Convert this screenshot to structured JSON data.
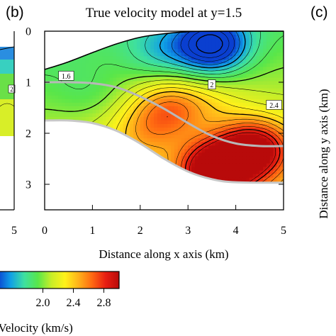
{
  "panel_b_label": "(b)",
  "panel_c_label": "(c)",
  "chart_data": [
    {
      "type": "heatmap",
      "title": "True velocity model at y=1.5",
      "xlabel": "Distance along x axis (km)",
      "ylabel": "",
      "xlim": [
        0,
        5
      ],
      "ylim": [
        0,
        3.5
      ],
      "y_axis_inverted": true,
      "x_ticks": [
        "0",
        "1",
        "2",
        "3",
        "4",
        "5"
      ],
      "y_ticks": [
        "0",
        "1",
        "2",
        "3"
      ],
      "contour_labels": [
        {
          "text": "1.6",
          "x": 0.45,
          "y": 0.88
        },
        {
          "text": "2",
          "x": 3.5,
          "y": 1.05
        },
        {
          "text": "2.4",
          "x": 4.8,
          "y": 1.45
        }
      ],
      "top_boundary": [
        [
          0,
          0.75
        ],
        [
          0.5,
          0.6
        ],
        [
          1,
          0.42
        ],
        [
          1.5,
          0.25
        ],
        [
          2,
          0.12
        ],
        [
          2.5,
          0.05
        ],
        [
          3,
          0.01
        ],
        [
          3.5,
          0.0
        ],
        [
          5,
          0.0
        ]
      ],
      "bottom_boundary": [
        [
          0,
          1.75
        ],
        [
          0.5,
          1.75
        ],
        [
          1,
          1.8
        ],
        [
          1.5,
          1.95
        ],
        [
          2,
          2.2
        ],
        [
          2.5,
          2.5
        ],
        [
          3,
          2.75
        ],
        [
          3.5,
          2.9
        ],
        [
          4,
          2.96
        ],
        [
          5,
          2.97
        ]
      ],
      "gray_line": [
        [
          0,
          1.0
        ],
        [
          0.5,
          1.0
        ],
        [
          1,
          1.02
        ],
        [
          1.5,
          1.1
        ],
        [
          2,
          1.28
        ],
        [
          2.5,
          1.52
        ],
        [
          3,
          1.8
        ],
        [
          3.5,
          2.05
        ],
        [
          4,
          2.2
        ],
        [
          4.5,
          2.25
        ],
        [
          5,
          2.25
        ]
      ],
      "velocity_field": {
        "background_kms": 1.9,
        "anomalies": [
          {
            "x": 3.5,
            "y": 0.28,
            "v": 1.1
          },
          {
            "x": 2.4,
            "y": 0.4,
            "v": 1.65
          },
          {
            "x": 0.9,
            "y": 1.2,
            "v": 1.8
          },
          {
            "x": 2.1,
            "y": 2.0,
            "v": 2.15
          },
          {
            "x": 2.6,
            "y": 1.5,
            "v": 2.35
          },
          {
            "x": 3.6,
            "y": 2.7,
            "v": 2.9
          },
          {
            "x": 4.4,
            "y": 2.3,
            "v": 2.75
          },
          {
            "x": 3.5,
            "y": 1.45,
            "v": 2.05
          }
        ]
      }
    },
    {
      "type": "heatmap",
      "title": "",
      "ylabel": "Distance along y axis (km)",
      "x_ticks": [
        "5"
      ],
      "y_ticks": []
    },
    {
      "type": "heatmap",
      "xlabel": "",
      "x_ticks": [
        "5"
      ],
      "y_ticks": [],
      "contour_labels": [
        {
          "text": "2",
          "x": 0,
          "y": 1.15
        }
      ]
    }
  ],
  "colorbar": {
    "tick_labels": [
      "2.0",
      "2.4",
      "2.8"
    ],
    "tick_values": [
      2.0,
      2.4,
      2.8
    ],
    "range": [
      1.4,
      3.0
    ],
    "label": "c Velocity (km/s)",
    "colors": [
      "#0a3fd0",
      "#10a0e6",
      "#3ee0a0",
      "#58e64a",
      "#c8ee28",
      "#fff21a",
      "#ffb21a",
      "#ff6a12",
      "#e81e12",
      "#b80a0a"
    ]
  }
}
